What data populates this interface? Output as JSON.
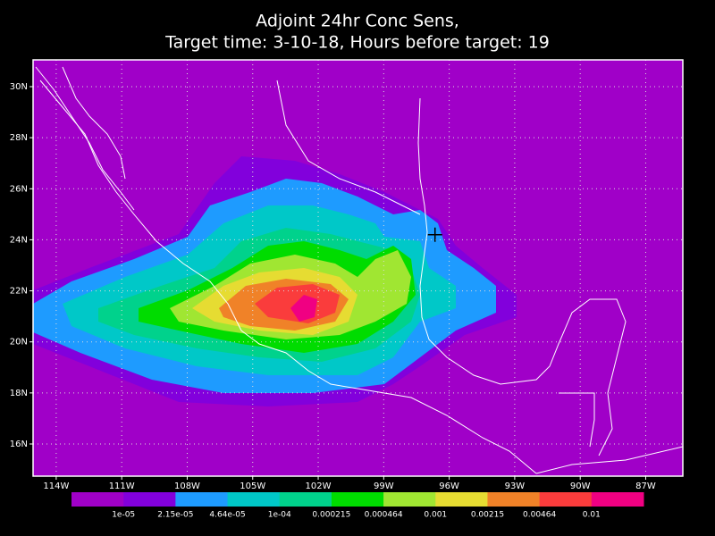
{
  "title": [
    "Adjoint 24hr Conc Sens,",
    "Target time: 3-10-18, Hours before target: 19"
  ],
  "map": {
    "xlim": [
      -115.06,
      -85.3
    ],
    "ylim": [
      14.74,
      31.05
    ],
    "xticks": [
      {
        "value": -114,
        "label": "114W"
      },
      {
        "value": -111,
        "label": "111W"
      },
      {
        "value": -108,
        "label": "108W"
      },
      {
        "value": -105,
        "label": "105W"
      },
      {
        "value": -102,
        "label": "102W"
      },
      {
        "value": -99,
        "label": "99W"
      },
      {
        "value": -96,
        "label": "96W"
      },
      {
        "value": -93,
        "label": "93W"
      },
      {
        "value": -90,
        "label": "90W"
      },
      {
        "value": -87,
        "label": "87W"
      }
    ],
    "yticks": [
      {
        "value": 16,
        "label": "16N"
      },
      {
        "value": 18,
        "label": "18N"
      },
      {
        "value": 20,
        "label": "20N"
      },
      {
        "value": 22,
        "label": "22N"
      },
      {
        "value": 24,
        "label": "24N"
      },
      {
        "value": 26,
        "label": "26N"
      },
      {
        "value": 28,
        "label": "28N"
      },
      {
        "value": 30,
        "label": "30N"
      }
    ],
    "grid": true,
    "target": {
      "lon": -96.65,
      "lat": 24.2
    }
  },
  "colorbar": {
    "levels": [
      {
        "value": 1e-05,
        "label": "1e-05"
      },
      {
        "value": 2.15e-05,
        "label": "2.15e-05"
      },
      {
        "value": 4.64e-05,
        "label": "4.64e-05"
      },
      {
        "value": 0.0001,
        "label": "1e-04"
      },
      0.000215,
      0.000464,
      0.001,
      0.00215,
      0.00464,
      0.01
    ],
    "colors": [
      "#a000c8",
      "#8200dc",
      "#1e9bff",
      "#00c8c8",
      "#00d28c",
      "#00dc00",
      "#a0e632",
      "#e6dc32",
      "#f08228",
      "#fa3c3c",
      "#f00082"
    ]
  }
}
